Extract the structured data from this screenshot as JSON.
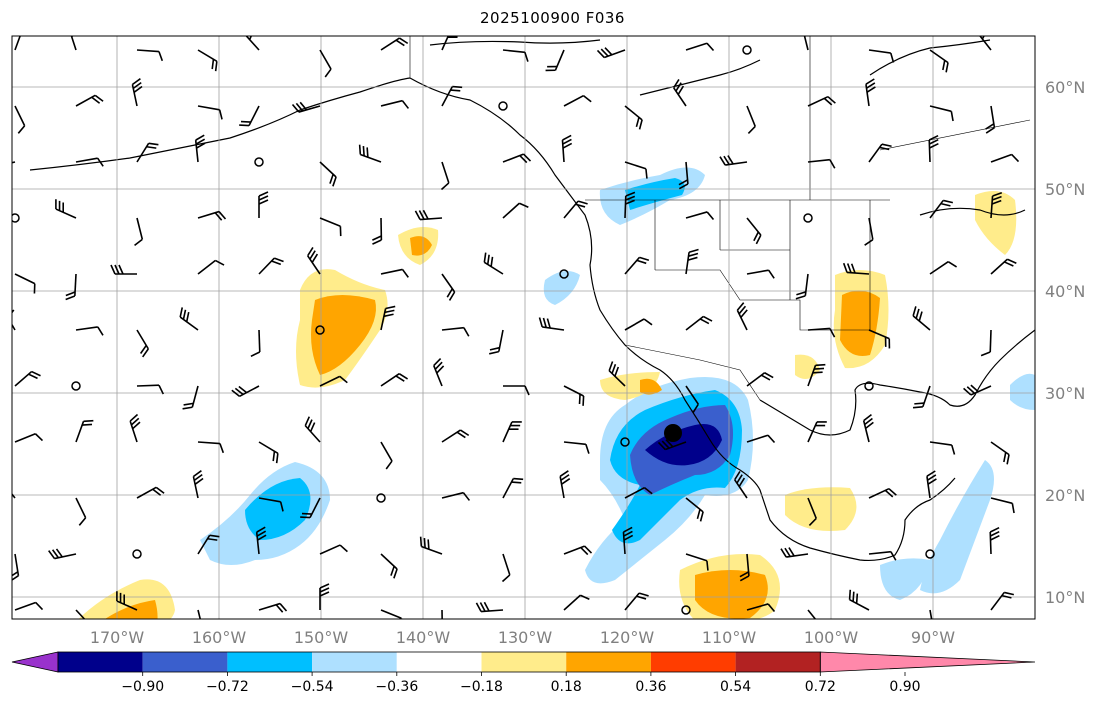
{
  "title": "2025100900 F036",
  "lon_labels": [
    "170°W",
    "160°W",
    "150°W",
    "140°W",
    "130°W",
    "120°W",
    "110°W",
    "100°W",
    "90°W"
  ],
  "lat_labels": [
    "60°N",
    "50°N",
    "40°N",
    "30°N",
    "20°N",
    "10°N"
  ],
  "colorbar": {
    "ticks": [
      "−0.90",
      "−0.72",
      "−0.54",
      "−0.36",
      "−0.18",
      "0.18",
      "0.36",
      "0.54",
      "0.72",
      "0.90"
    ],
    "colors": [
      "#9932cc",
      "#00008b",
      "#3a5fcd",
      "#00bfff",
      "#aee0ff",
      "#ffffff",
      "#ffec8b",
      "#ffa500",
      "#ff3d00",
      "#b22222",
      "#ff88aa"
    ]
  },
  "colors": {
    "axis_label": "#808080",
    "grid": "#a0a0a0",
    "coast": "#000000"
  },
  "marker": {
    "lon": "115°W",
    "lat": "26°N"
  }
}
